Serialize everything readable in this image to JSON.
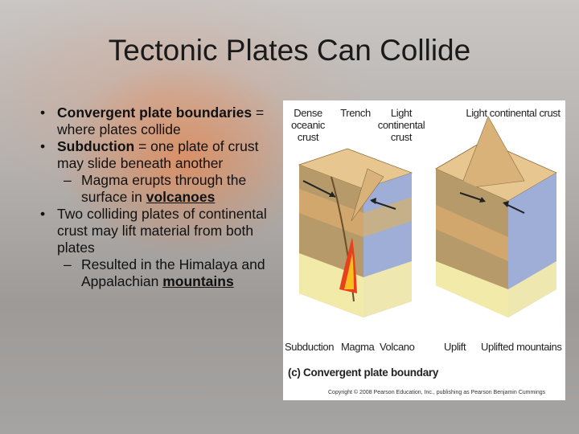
{
  "slide": {
    "title": "Tectonic Plates Can Collide",
    "bullets": [
      {
        "marker": "•",
        "level": 1,
        "parts": [
          {
            "text": "Convergent plate boundaries",
            "style": "bold"
          },
          {
            "text": " = where plates collide",
            "style": "plain"
          }
        ]
      },
      {
        "marker": "•",
        "level": 1,
        "parts": [
          {
            "text": "Subduction",
            "style": "bold"
          },
          {
            "text": " = one plate of crust may slide beneath another",
            "style": "plain"
          }
        ]
      },
      {
        "marker": "–",
        "level": 2,
        "parts": [
          {
            "text": "Magma erupts through the surface in ",
            "style": "plain"
          },
          {
            "text": "volcanoes",
            "style": "bold-underline"
          }
        ]
      },
      {
        "marker": "•",
        "level": 1,
        "parts": [
          {
            "text": "Two colliding plates of continental crust may lift material from both plates",
            "style": "plain"
          }
        ]
      },
      {
        "marker": "–",
        "level": 2,
        "parts": [
          {
            "text": "Resulted in the Himalaya and Appalachian ",
            "style": "plain"
          },
          {
            "text": "mountains",
            "style": "bold-underline"
          }
        ]
      }
    ],
    "figure": {
      "labels": {
        "dense_oceanic_crust": "Dense oceanic crust",
        "trench": "Trench",
        "light_continental_crust_left": "Light continental crust",
        "light_continental_crust_right": "Light continental crust",
        "subduction": "Subduction",
        "magma": "Magma",
        "volcano": "Volcano",
        "uplift": "Uplift",
        "uplifted_mountains": "Uplifted mountains"
      },
      "caption": "(c) Convergent plate boundary",
      "copyright": "Copyright © 2008 Pearson Education, Inc., publishing as Pearson Benjamin Cummings"
    }
  }
}
